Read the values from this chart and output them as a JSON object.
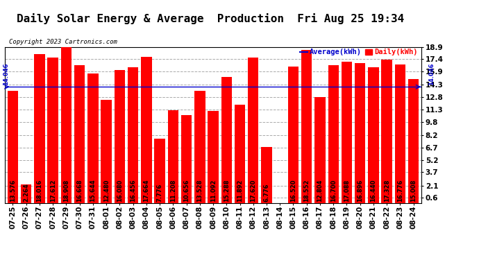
{
  "title": "Daily Solar Energy & Average  Production  Fri Aug 25 19:34",
  "copyright": "Copyright 2023 Cartronics.com",
  "average_label": "Average(kWh)",
  "daily_label": "Daily(kWh)",
  "average_value": 14.046,
  "average_text": "14.046",
  "categories": [
    "07-25",
    "07-26",
    "07-27",
    "07-28",
    "07-29",
    "07-30",
    "07-31",
    "08-01",
    "08-02",
    "08-03",
    "08-04",
    "08-05",
    "08-06",
    "08-07",
    "08-08",
    "08-09",
    "08-10",
    "08-11",
    "08-12",
    "08-13",
    "08-14",
    "08-15",
    "08-16",
    "08-17",
    "08-18",
    "08-19",
    "08-20",
    "08-21",
    "08-22",
    "08-23",
    "08-24"
  ],
  "values": [
    13.576,
    2.264,
    18.016,
    17.612,
    18.908,
    16.668,
    15.644,
    12.48,
    16.08,
    16.456,
    17.664,
    7.776,
    11.208,
    10.656,
    13.528,
    11.092,
    15.288,
    11.892,
    17.62,
    6.776,
    0.0,
    16.52,
    18.552,
    12.804,
    16.7,
    17.088,
    16.896,
    16.44,
    17.328,
    16.776,
    15.008
  ],
  "bar_color": "#ff0000",
  "average_line_color": "#0000cc",
  "ylim_min": 0,
  "ylim_max": 18.9,
  "yticks": [
    0.6,
    2.1,
    3.7,
    5.2,
    6.7,
    8.2,
    9.8,
    11.3,
    12.8,
    14.3,
    15.9,
    17.4,
    18.9
  ],
  "background_color": "#ffffff",
  "grid_color": "#aaaaaa",
  "title_fontsize": 11.5,
  "bar_label_fontsize": 6,
  "tick_fontsize": 7.5,
  "copyright_fontsize": 6.5,
  "legend_fontsize": 7.5
}
